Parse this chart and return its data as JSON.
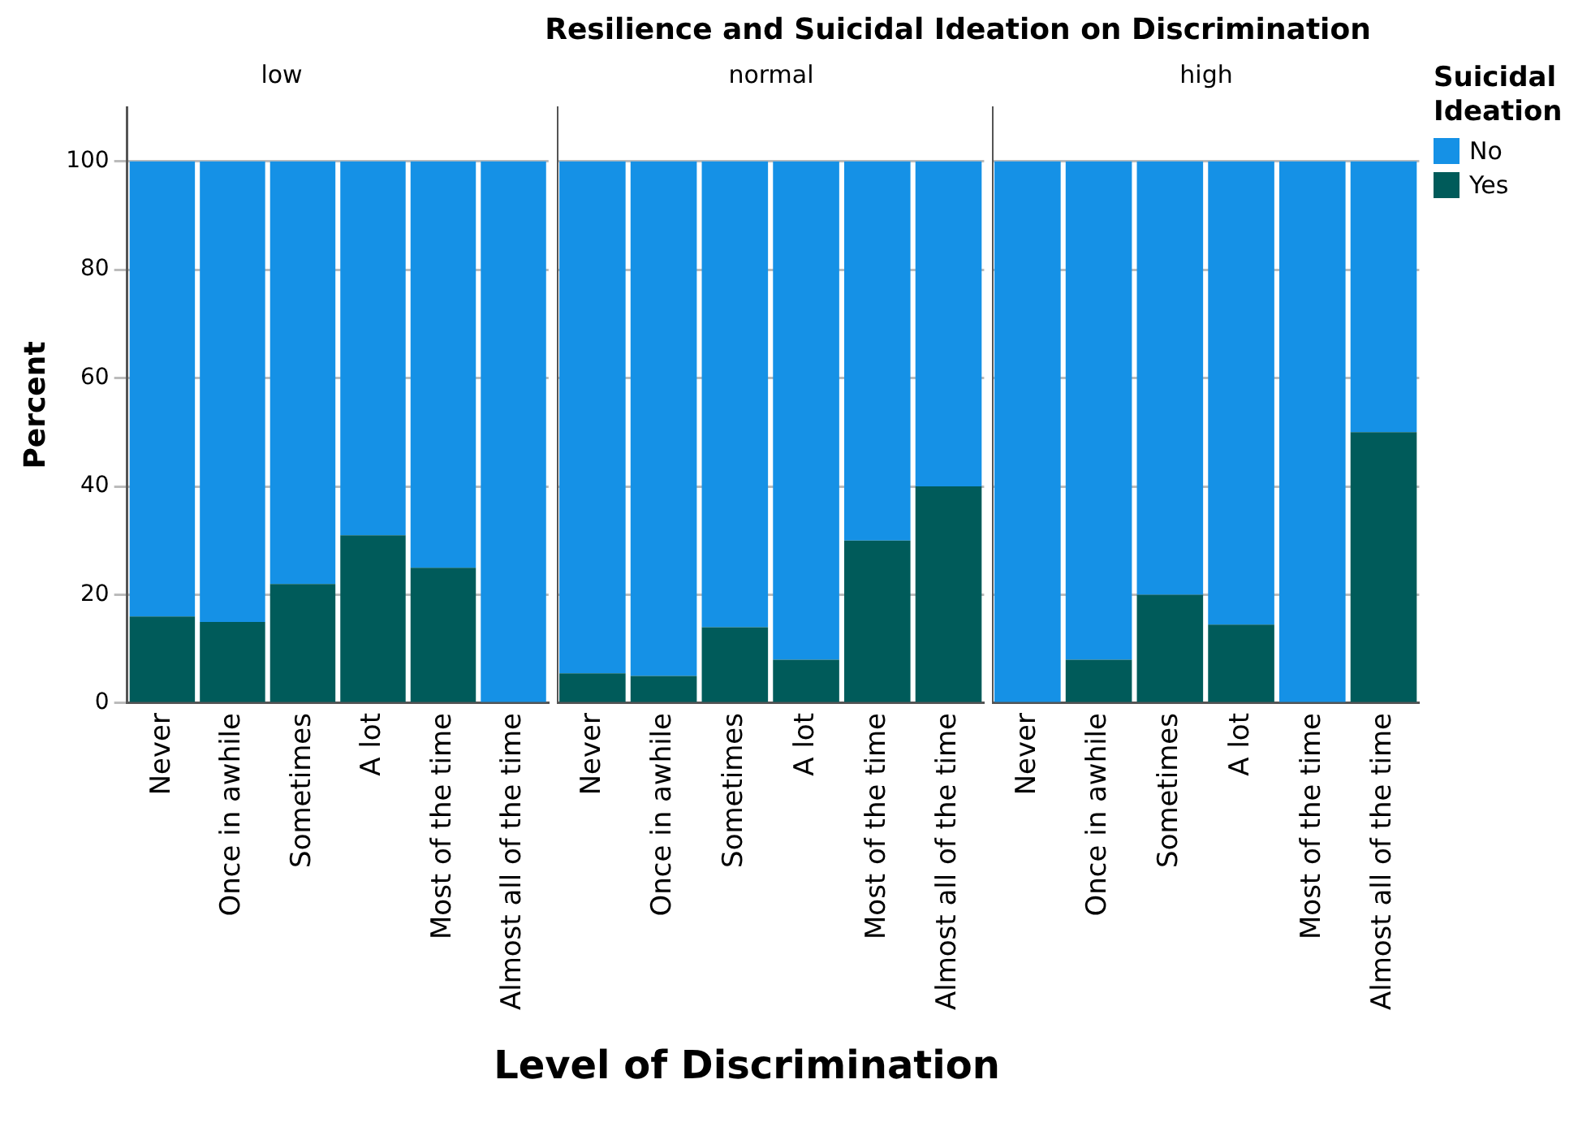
{
  "chart_data": [
    {
      "type": "bar",
      "subtitle": "low",
      "ylabel": "Percent",
      "categories": [
        "Never",
        "Once in awhile",
        "Sometimes",
        "A lot",
        "Most of the time",
        "Almost all of the time"
      ],
      "stacked": true,
      "ylim": [
        0,
        110
      ],
      "yticks": [
        0,
        20,
        40,
        60,
        80,
        100
      ],
      "grid": "y",
      "series": [
        {
          "color": "#005b5a",
          "values": [
            16,
            15,
            22,
            31,
            25,
            0
          ]
        },
        {
          "color": "#1591e6",
          "values": [
            84,
            85,
            78,
            69,
            75,
            100
          ]
        }
      ]
    },
    {
      "type": "bar",
      "title": "Resilience and Suicidal Ideation on Discrimination",
      "subtitle": "normal",
      "xlabel": "Level of Discrimination",
      "categories": [
        "Never",
        "Once in awhile",
        "Sometimes",
        "A lot",
        "Most of the time",
        "Almost all of the time"
      ],
      "stacked": true,
      "ylim": [
        0,
        110
      ],
      "yticks": [
        0,
        20,
        40,
        60,
        80,
        100
      ],
      "grid": "y",
      "tick_labels": "x",
      "series": [
        {
          "color": "#005b5a",
          "values": [
            5.5,
            5,
            14,
            8,
            30,
            40
          ]
        },
        {
          "color": "#1591e6",
          "values": [
            94.5,
            95,
            86,
            92,
            70,
            60
          ]
        }
      ]
    },
    {
      "type": "bar",
      "subtitle": "high",
      "legend_title": "Suicidal Ideation",
      "legend": "right",
      "categories": [
        "Never",
        "Once in awhile",
        "Sometimes",
        "A lot",
        "Most of the time",
        "Almost all of the time"
      ],
      "stacked": true,
      "ylim": [
        0,
        110
      ],
      "yticks": [
        0,
        20,
        40,
        60,
        80,
        100
      ],
      "grid": "y",
      "tick_labels": "x",
      "series": [
        {
          "name": "Yes",
          "color": "#005b5a",
          "values": [
            0,
            8,
            20,
            14.5,
            0,
            50
          ]
        },
        {
          "name": "No",
          "color": "#1591e6",
          "values": [
            100,
            92,
            80,
            85.5,
            100,
            50
          ]
        }
      ]
    }
  ]
}
